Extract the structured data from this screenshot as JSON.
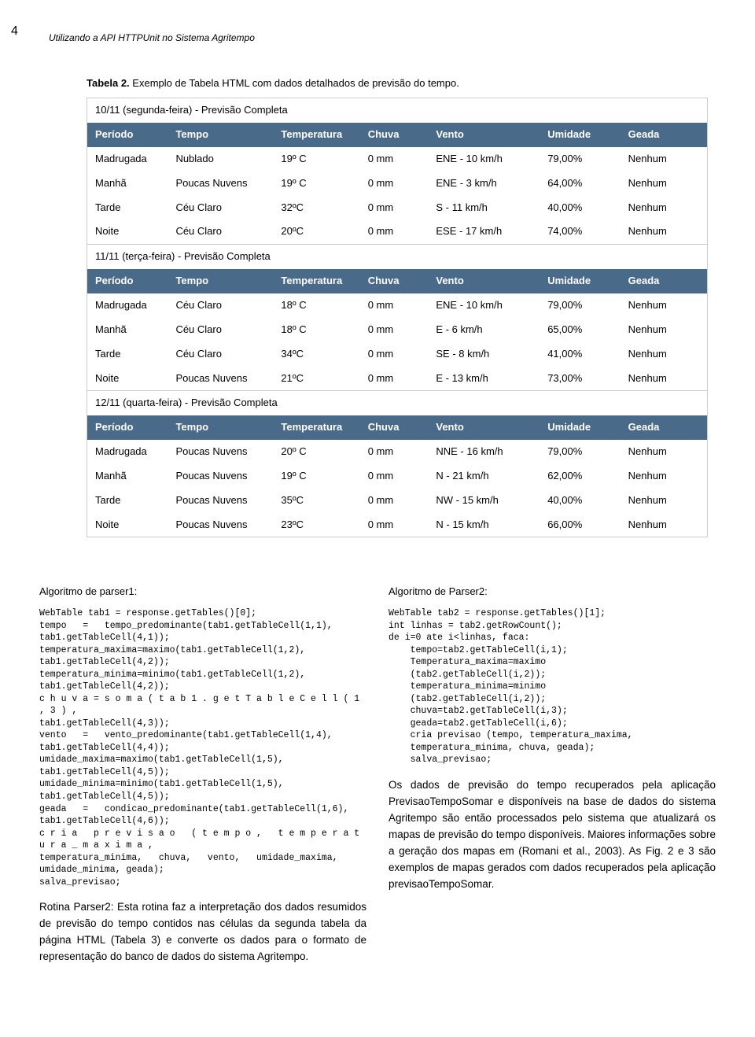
{
  "page_number": "4",
  "running_title": "Utilizando a API HTTPUnit no Sistema Agritempo",
  "caption": {
    "label": "Tabela 2.",
    "text": " Exemplo de Tabela HTML com dados detalhados de previsão do tempo."
  },
  "headers": [
    "Período",
    "Tempo",
    "Temperatura",
    "Chuva",
    "Vento",
    "Umidade",
    "Geada"
  ],
  "header_bg": "#4a6a8a",
  "header_fg": "#ffffff",
  "column_widths_pct": [
    13,
    17,
    14,
    11,
    18,
    13,
    14
  ],
  "days": [
    {
      "title": "10/11 (segunda-feira) - Previsão Completa",
      "rows": [
        [
          "Madrugada",
          "Nublado",
          "19º C",
          "0 mm",
          "ENE - 10 km/h",
          "79,00%",
          "Nenhum"
        ],
        [
          "Manhã",
          "Poucas Nuvens",
          "19º C",
          "0 mm",
          "ENE - 3 km/h",
          "64,00%",
          "Nenhum"
        ],
        [
          "Tarde",
          "Céu Claro",
          "32ºC",
          "0 mm",
          "S - 11 km/h",
          "40,00%",
          "Nenhum"
        ],
        [
          "Noite",
          "Céu Claro",
          "20ºC",
          "0 mm",
          "ESE - 17 km/h",
          "74,00%",
          "Nenhum"
        ]
      ]
    },
    {
      "title": "11/11 (terça-feira) - Previsão Completa",
      "rows": [
        [
          "Madrugada",
          "Céu Claro",
          "18º C",
          "0 mm",
          "ENE - 10 km/h",
          "79,00%",
          "Nenhum"
        ],
        [
          "Manhã",
          "Céu Claro",
          "18º C",
          "0 mm",
          "E - 6 km/h",
          "65,00%",
          "Nenhum"
        ],
        [
          "Tarde",
          "Céu Claro",
          "34ºC",
          "0 mm",
          "SE - 8 km/h",
          "41,00%",
          "Nenhum"
        ],
        [
          "Noite",
          "Poucas Nuvens",
          "21ºC",
          "0 mm",
          "E - 13 km/h",
          "73,00%",
          "Nenhum"
        ]
      ]
    },
    {
      "title": "12/11 (quarta-feira) - Previsão Completa",
      "rows": [
        [
          "Madrugada",
          "Poucas Nuvens",
          "20º C",
          "0 mm",
          "NNE - 16 km/h",
          "79,00%",
          "Nenhum"
        ],
        [
          "Manhã",
          "Poucas Nuvens",
          "19º C",
          "0 mm",
          "N - 21 km/h",
          "62,00%",
          "Nenhum"
        ],
        [
          "Tarde",
          "Poucas Nuvens",
          "35ºC",
          "0 mm",
          "NW - 15 km/h",
          "40,00%",
          "Nenhum"
        ],
        [
          "Noite",
          "Poucas Nuvens",
          "23ºC",
          "0 mm",
          "N - 15 km/h",
          "66,00%",
          "Nenhum"
        ]
      ]
    }
  ],
  "left_col": {
    "title": "Algoritmo de parser1:",
    "code": "WebTable tab1 = response.getTables()[0];\ntempo   =   tempo_predominante(tab1.getTableCell(1,1),\ntab1.getTableCell(4,1));\ntemperatura_maxima=maximo(tab1.getTableCell(1,2),\ntab1.getTableCell(4,2));\ntemperatura_minima=minimo(tab1.getTableCell(1,2),\ntab1.getTableCell(4,2));\nc h u v a = s o m a ( t a b 1 . g e t T a b l e C e l l ( 1 , 3 ) ,\ntab1.getTableCell(4,3));\nvento   =   vento_predominante(tab1.getTableCell(1,4),\ntab1.getTableCell(4,4));\numidade_maxima=maximo(tab1.getTableCell(1,5),\ntab1.getTableCell(4,5));\numidade_minima=minimo(tab1.getTableCell(1,5),\ntab1.getTableCell(4,5));\ngeada   =   condicao_predominante(tab1.getTableCell(1,6),\ntab1.getTableCell(4,6));\nc r i a   p r e v i s a o   ( t e m p o ,   t e m p e r a t u r a _ m a x i m a ,\ntemperatura_minima,   chuva,   vento,   umidade_maxima,\numidade_minima, geada);\nsalva_previsao;",
    "paragraph": "Rotina Parser2: Esta rotina faz a interpretação dos dados resumidos de previsão do tempo contidos nas células da segunda tabela da página HTML (Tabela 3) e converte os dados para o formato de representação do banco de dados do sistema Agritempo."
  },
  "right_col": {
    "title": "Algoritmo de Parser2:",
    "code": "WebTable tab2 = response.getTables()[1];\nint linhas = tab2.getRowCount();\nde i=0 ate i<linhas, faca:\n    tempo=tab2.getTableCell(i,1);\n    Temperatura_maxima=maximo\n    (tab2.getTableCell(i,2));\n    temperatura_minima=minimo\n    (tab2.getTableCell(i,2));\n    chuva=tab2.getTableCell(i,3);\n    geada=tab2.getTableCell(i,6);\n    cria previsao (tempo, temperatura_maxima,\n    temperatura_minima, chuva, geada);\n    salva_previsao;",
    "paragraph": "Os dados de previsão do tempo recuperados pela aplicação PrevisaoTempoSomar e disponíveis na base de dados do sistema Agritempo são então processados pelo sistema que atualizará os mapas de previsão do tempo disponíveis. Maiores informações sobre a geração dos mapas em (Romani et al., 2003). As Fig. 2 e 3 são exemplos de mapas gerados com dados recuperados pela aplicação previsaoTempoSomar."
  }
}
